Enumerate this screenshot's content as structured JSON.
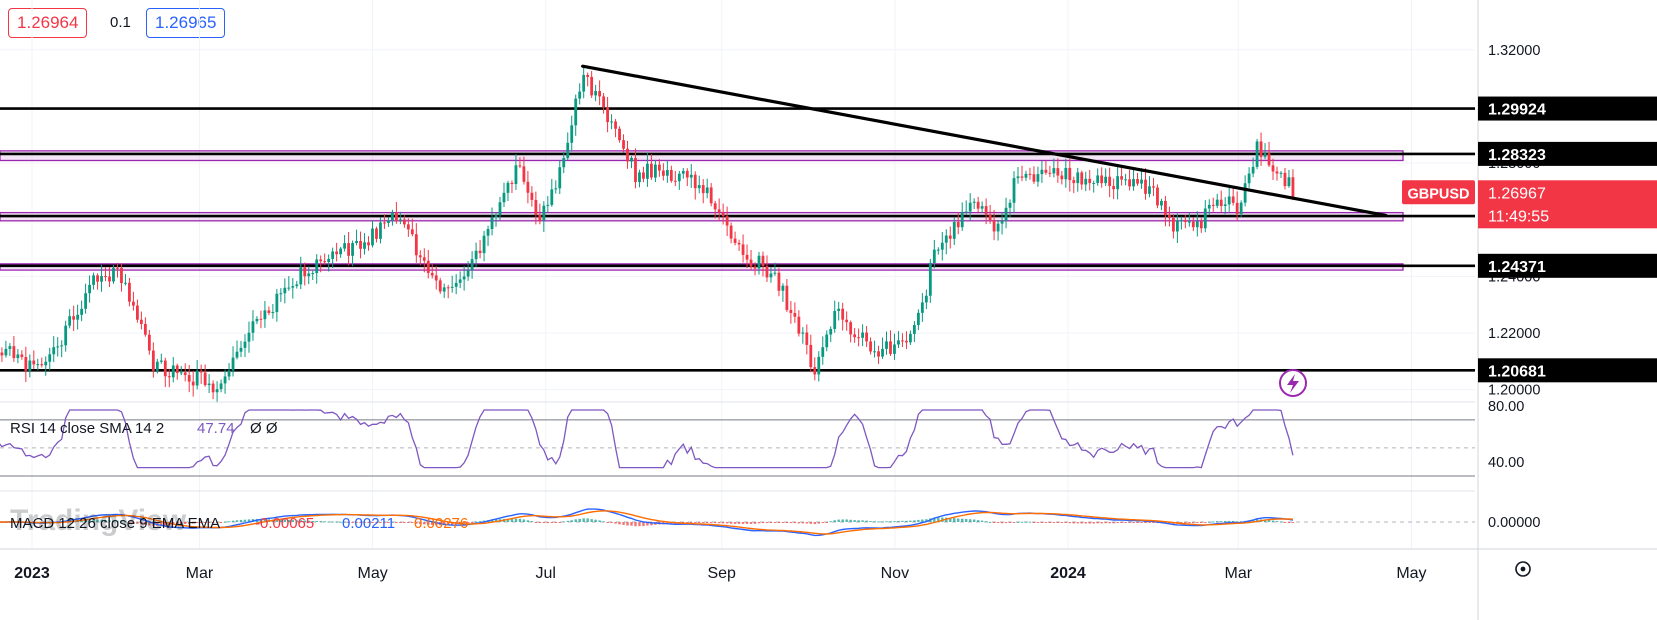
{
  "quote": {
    "bid": "1.26964",
    "spread": "0.1",
    "ask": "1.26965"
  },
  "colors": {
    "up": "#089981",
    "down": "#f23645",
    "rsi": "#7e57c2",
    "macd": "#2962ff",
    "signal": "#ff6d00",
    "zone": "#9c27b0",
    "badge": "#f23645",
    "grid": "#f0f3fa",
    "axis_text": "#131722"
  },
  "chart_data": {
    "type": "candlestick",
    "symbol": "GBPUSD",
    "last_price": "1.26967",
    "countdown": "11:49:55",
    "y_ticks": [
      "1.32000",
      "1.28000",
      "1.24000",
      "1.22000",
      "1.20000"
    ],
    "ylim": [
      1.196,
      1.322
    ],
    "x_ticks": [
      "2023",
      "Mar",
      "May",
      "Jul",
      "Sep",
      "Nov",
      "2024",
      "Mar",
      "May"
    ],
    "levels": [
      {
        "label": "1.29924",
        "value": 1.29924
      },
      {
        "label": "1.28323",
        "value": 1.28323
      },
      {
        "label": "1.26129",
        "value": 1.26129
      },
      {
        "label": "1.24371",
        "value": 1.24371
      },
      {
        "label": "1.20681",
        "value": 1.20681
      }
    ],
    "zones": [
      {
        "from": 1.2809,
        "to": 1.2843
      },
      {
        "from": 1.2596,
        "to": 1.2625
      },
      {
        "from": 1.2422,
        "to": 1.2444
      }
    ],
    "trendline": {
      "start": {
        "date": "2023-07-14",
        "price": 1.3142
      },
      "end": {
        "date": "2024-04-22",
        "price": 1.2615
      }
    },
    "anchors": [
      [
        "2022-12-20",
        1.2152
      ],
      [
        "2023-01-02",
        1.207
      ],
      [
        "2023-01-10",
        1.216
      ],
      [
        "2023-01-23",
        1.239
      ],
      [
        "2023-02-01",
        1.242
      ],
      [
        "2023-02-13",
        1.208
      ],
      [
        "2023-02-28",
        1.204
      ],
      [
        "2023-03-08",
        1.199
      ],
      [
        "2023-03-14",
        1.216
      ],
      [
        "2023-03-31",
        1.235
      ],
      [
        "2023-04-14",
        1.248
      ],
      [
        "2023-04-26",
        1.251
      ],
      [
        "2023-05-10",
        1.262
      ],
      [
        "2023-05-25",
        1.233
      ],
      [
        "2023-06-06",
        1.246
      ],
      [
        "2023-06-21",
        1.279
      ],
      [
        "2023-06-29",
        1.261
      ],
      [
        "2023-07-05",
        1.272
      ],
      [
        "2023-07-14",
        1.312
      ],
      [
        "2023-07-27",
        1.288
      ],
      [
        "2023-08-02",
        1.275
      ],
      [
        "2023-08-08",
        1.278
      ],
      [
        "2023-08-21",
        1.275
      ],
      [
        "2023-08-30",
        1.265
      ],
      [
        "2023-09-06",
        1.25
      ],
      [
        "2023-09-20",
        1.24
      ],
      [
        "2023-10-04",
        1.207
      ],
      [
        "2023-10-11",
        1.228
      ],
      [
        "2023-10-23",
        1.215
      ],
      [
        "2023-11-01",
        1.214
      ],
      [
        "2023-11-09",
        1.223
      ],
      [
        "2023-11-15",
        1.248
      ],
      [
        "2023-11-29",
        1.268
      ],
      [
        "2023-12-08",
        1.256
      ],
      [
        "2023-12-14",
        1.275
      ],
      [
        "2023-12-28",
        1.276
      ],
      [
        "2024-01-11",
        1.274
      ],
      [
        "2024-01-22",
        1.272
      ],
      [
        "2024-01-31",
        1.272
      ],
      [
        "2024-02-05",
        1.258
      ],
      [
        "2024-02-14",
        1.256
      ],
      [
        "2024-02-23",
        1.267
      ],
      [
        "2024-03-01",
        1.265
      ],
      [
        "2024-03-08",
        1.286
      ],
      [
        "2024-03-14",
        1.278
      ],
      [
        "2024-03-21",
        1.27
      ]
    ],
    "rsi": {
      "label": "RSI 14 close SMA 14 2",
      "value": "47.74",
      "extra": "Ø Ø",
      "ticks": [
        "80.00",
        "40.00"
      ],
      "upper": 70,
      "lower": 30,
      "mid": 50,
      "ylim": [
        30,
        82
      ]
    },
    "macd": {
      "label": "MACD 12 26 close 9 EMA EMA",
      "hist": "-0.00065",
      "macd": "0.00211",
      "signal": "0.00276",
      "ticks": [
        "0.00000"
      ]
    },
    "watermark": "TradingView"
  }
}
